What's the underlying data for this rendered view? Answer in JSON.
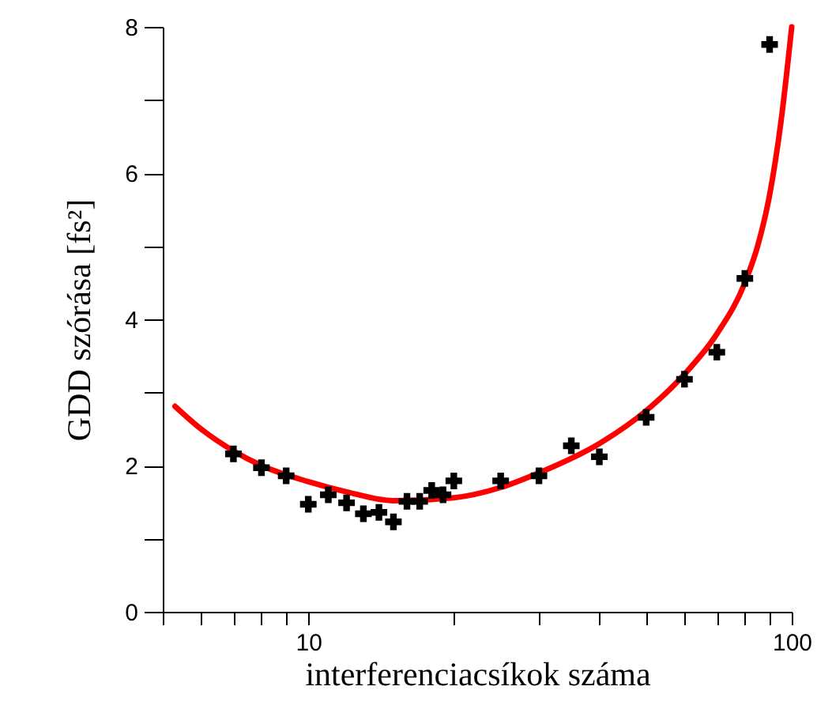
{
  "chart_data": {
    "type": "scatter",
    "xlabel": "interferenciacsíkok száma",
    "ylabel": "GDD szórása [fs²]",
    "log": "x",
    "xlim": [
      5,
      100
    ],
    "ylim": [
      0,
      8
    ],
    "xticks": [
      {
        "value": 5,
        "label": null
      },
      {
        "value": 6,
        "label": null
      },
      {
        "value": 7,
        "label": null
      },
      {
        "value": 8,
        "label": null
      },
      {
        "value": 9,
        "label": null
      },
      10,
      {
        "value": 20,
        "label": null
      },
      {
        "value": 30,
        "label": null
      },
      {
        "value": 40,
        "label": null
      },
      {
        "value": 50,
        "label": null
      },
      {
        "value": 60,
        "label": null
      },
      {
        "value": 70,
        "label": null
      },
      {
        "value": 80,
        "label": null
      },
      {
        "value": 90,
        "label": null
      },
      100
    ],
    "yticks": [
      0,
      {
        "value": 1,
        "label": null
      },
      2,
      {
        "value": 3,
        "label": null
      },
      4,
      {
        "value": 5,
        "label": null
      },
      6,
      {
        "value": 7,
        "label": null
      },
      8
    ],
    "x": [
      7,
      8,
      9,
      10,
      11,
      12,
      13,
      14,
      15,
      16,
      17,
      18,
      19,
      20,
      25,
      30,
      35,
      40,
      50,
      60,
      70,
      80,
      90
    ],
    "series": [
      {
        "type": "line",
        "color": "#ff0000",
        "x": [
          5.3,
          6,
          7,
          8,
          10,
          12,
          15,
          20,
          25,
          30,
          40,
          50,
          60,
          70,
          80,
          85,
          90,
          95,
          100
        ],
        "values": [
          2.81,
          2.5,
          2.2,
          2.0,
          1.78,
          1.64,
          1.52,
          1.56,
          1.7,
          1.9,
          2.3,
          2.75,
          3.25,
          3.8,
          4.5,
          5.0,
          5.7,
          6.7,
          8.0
        ]
      },
      {
        "type": "scatter",
        "marker": "cross",
        "color": "#000000",
        "values": [
          2.16,
          1.97,
          1.86,
          1.47,
          1.6,
          1.49,
          1.34,
          1.36,
          1.23,
          1.51,
          1.51,
          1.66,
          1.6,
          1.79,
          1.79,
          1.86,
          2.27,
          2.12,
          2.66,
          3.18,
          3.55,
          4.56,
          7.76
        ]
      }
    ]
  }
}
